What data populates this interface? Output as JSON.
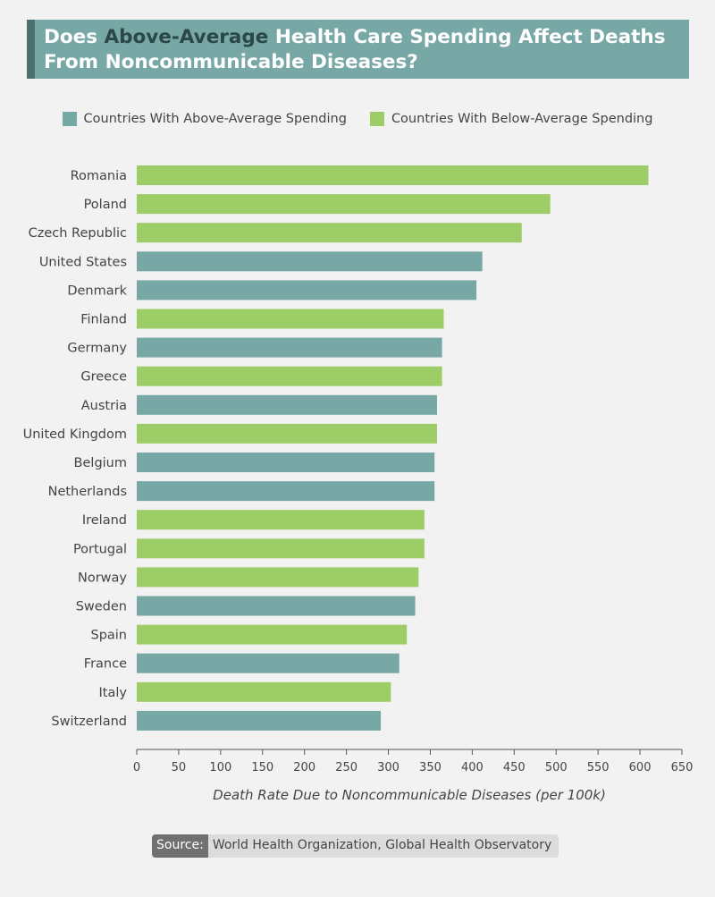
{
  "title": {
    "part1": "Does ",
    "highlight": "Above-Average",
    "part2": " Health Care Spending Affect Deaths",
    "line2": "From Noncommunicable Diseases?"
  },
  "legend": [
    {
      "label": "Countries With Above-Average Spending",
      "color": "#77a8a6"
    },
    {
      "label": "Countries With Below-Average Spending",
      "color": "#9dcd66"
    }
  ],
  "chart_data": {
    "type": "bar",
    "orientation": "horizontal",
    "categories": [
      "Romania",
      "Poland",
      "Czech Republic",
      "United States",
      "Denmark",
      "Finland",
      "Germany",
      "Greece",
      "Austria",
      "United Kingdom",
      "Belgium",
      "Netherlands",
      "Ireland",
      "Portugal",
      "Norway",
      "Sweden",
      "Spain",
      "France",
      "Italy",
      "Switzerland"
    ],
    "values": [
      610,
      493,
      459,
      412,
      405,
      366,
      364,
      364,
      358,
      358,
      355,
      355,
      343,
      343,
      336,
      332,
      322,
      313,
      303,
      291
    ],
    "spending": [
      "below",
      "below",
      "below",
      "above",
      "above",
      "below",
      "above",
      "below",
      "above",
      "below",
      "above",
      "above",
      "below",
      "below",
      "below",
      "above",
      "below",
      "above",
      "below",
      "above"
    ],
    "colors": {
      "above": "#77a8a6",
      "below": "#9dcd66"
    },
    "xlabel": "Death Rate Due to Noncommunicable Diseases (per 100k)",
    "xlim": [
      0,
      650
    ],
    "xticks": [
      0,
      50,
      100,
      150,
      200,
      250,
      300,
      350,
      400,
      450,
      500,
      550,
      600,
      650
    ]
  },
  "source": {
    "label": "Source:",
    "text": "World Health Organization, Global Health Observatory"
  }
}
